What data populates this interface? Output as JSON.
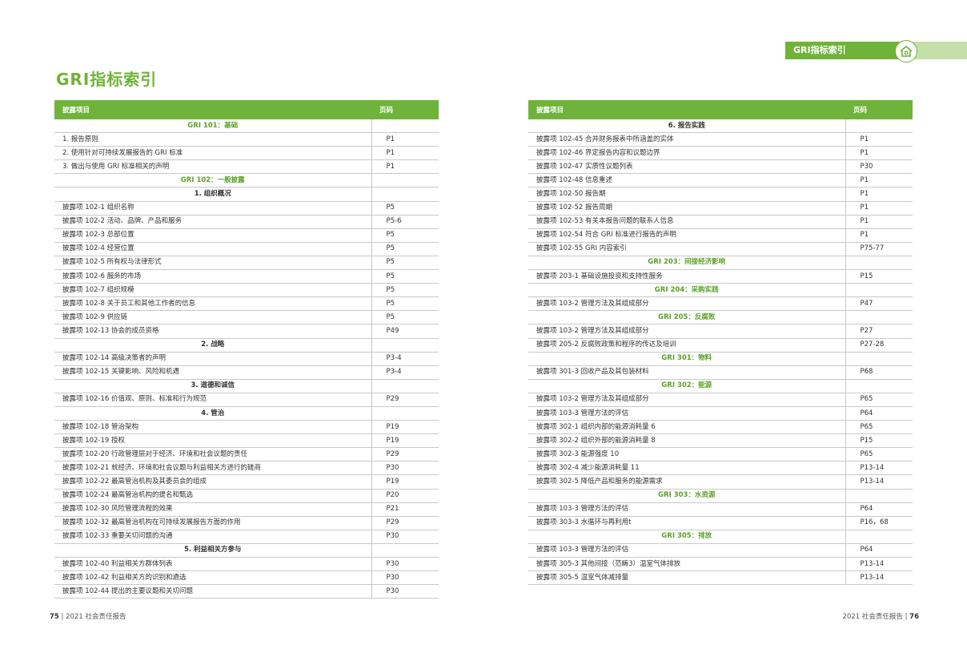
{
  "header": {
    "section_tab": "GRI指标索引",
    "home_icon": "home-icon"
  },
  "page_title": "GRI指标索引",
  "columns": {
    "item": "披露项目",
    "page": "页码"
  },
  "left_rows": [
    {
      "type": "section",
      "label": "GRI 101：基础"
    },
    {
      "item": "1. 报告原则",
      "page": "P1"
    },
    {
      "item": "2. 使用针对可持续发展报告的 GRI 标准",
      "page": "P1"
    },
    {
      "item": "3. 做出与使用 GRI 标准相关的声明",
      "page": "P1"
    },
    {
      "type": "section",
      "label": "GRI 102：一般披露"
    },
    {
      "type": "sub",
      "label": "1. 组织概况"
    },
    {
      "item": "披露项 102-1 组织名称",
      "page": "P5"
    },
    {
      "item": "披露项 102-2 活动、品牌、产品和服务",
      "page": "P5-6"
    },
    {
      "item": "披露项 102-3 总部位置",
      "page": "P5"
    },
    {
      "item": "披露项 102-4 经营位置",
      "page": "P5"
    },
    {
      "item": "披露项 102-5 所有权与法律形式",
      "page": "P5"
    },
    {
      "item": "披露项 102-6 服务的市场",
      "page": "P5"
    },
    {
      "item": "披露项 102-7 组织规模",
      "page": "P5"
    },
    {
      "item": "披露项 102-8 关于员工和其他工作者的信息",
      "page": "P5"
    },
    {
      "item": "披露项 102-9 供应链",
      "page": "P5"
    },
    {
      "item": "披露项 102-13 协会的成员资格",
      "page": "P49"
    },
    {
      "type": "sub",
      "label": "2. 战略"
    },
    {
      "item": "披露项 102-14 高级决策者的声明",
      "page": "P3-4"
    },
    {
      "item": "披露项 102-15 关键影响、风险和机遇",
      "page": "P3-4"
    },
    {
      "type": "sub",
      "label": "3. 道德和诚信"
    },
    {
      "item": "披露项 102-16 价值观、原则、标准和行为规范",
      "page": "P29"
    },
    {
      "type": "sub",
      "label": "4. 管治"
    },
    {
      "item": "披露项 102-18 管治架构",
      "page": "P19"
    },
    {
      "item": "披露项 102-19 授权",
      "page": "P19"
    },
    {
      "item": "披露项 102-20 行政管理层对于经济、环境和社会议题的责任",
      "page": "P29"
    },
    {
      "item": "披露项 102-21 就经济、环境和社会议题与利益相关方进行的磋商",
      "page": "P30"
    },
    {
      "item": "披露项 102-22 最高管治机构及其委员会的组成",
      "page": "P19"
    },
    {
      "item": "披露项 102-24 最高管治机构的提名和甄选",
      "page": "P20"
    },
    {
      "item": "披露项 102-30 风险管理流程的效果",
      "page": "P21"
    },
    {
      "item": "披露项 102-32 最高管治机构在可持续发展报告方面的作用",
      "page": "P29"
    },
    {
      "item": "披露项 102-33 重要关切问题的沟通",
      "page": "P30"
    },
    {
      "type": "sub",
      "label": "5. 利益相关方参与"
    },
    {
      "item": "披露项 102-40 利益相关方群体列表",
      "page": "P30"
    },
    {
      "item": "披露项 102-42 利益相关方的识别和遴选",
      "page": "P30"
    },
    {
      "item": "披露项 102-44 提出的主要议题和关切问题",
      "page": "P30"
    }
  ],
  "right_rows": [
    {
      "type": "sub",
      "label": "6. 报告实践"
    },
    {
      "item": "披露项 102-45 合并财务报表中所涵盖的实体",
      "page": "P1"
    },
    {
      "item": "披露项 102-46 界定报告内容和议题边界",
      "page": "P1"
    },
    {
      "item": "披露项 102-47 实质性议题列表",
      "page": "P30"
    },
    {
      "item": "披露项 102-48 信息重述",
      "page": "P1"
    },
    {
      "item": "披露项 102-50 报告期",
      "page": "P1"
    },
    {
      "item": "披露项 102-52 报告周期",
      "page": "P1"
    },
    {
      "item": "披露项 102-53 有关本报告问题的联系人信息",
      "page": "P1"
    },
    {
      "item": "披露项 102-54 符合 GRI 标准进行报告的声明",
      "page": "P1"
    },
    {
      "item": "披露项 102-55 GRI 内容索引",
      "page": "P75-77"
    },
    {
      "type": "section",
      "label": "GRI 203：间接经济影响"
    },
    {
      "item": "披露项 203-1 基础设施投资和支持性服务",
      "page": "P15"
    },
    {
      "type": "section",
      "label": "GRI 204：采购实践"
    },
    {
      "item": "披露项 103-2 管理方法及其组成部分",
      "page": "P47"
    },
    {
      "type": "section",
      "label": "GRI 205：反腐败"
    },
    {
      "item": "披露项 103-2 管理方法及其组成部分",
      "page": "P27"
    },
    {
      "item": "披露项 205-2 反腐败政策和程序的传达及培训",
      "page": "P27-28"
    },
    {
      "type": "section",
      "label": "GRI 301：物料"
    },
    {
      "item": "披露项 301-3 回收产品及其包装材料",
      "page": "P68"
    },
    {
      "type": "section",
      "label": "GRI 302：能源"
    },
    {
      "item": "披露项 103-2 管理方法及其组成部分",
      "page": "P65"
    },
    {
      "item": "披露项 103-3 管理方法的评估",
      "page": "P64"
    },
    {
      "item": "披露项 302-1 组织内部的能源消耗量 6",
      "page": "P65"
    },
    {
      "item": "披露项 302-2 组织外部的能源消耗量 8",
      "page": "P15"
    },
    {
      "item": "披露项 302-3 能源强度 10",
      "page": "P65"
    },
    {
      "item": "披露项 302-4 减少能源消耗量 11",
      "page": "P13-14"
    },
    {
      "item": "披露项 302-5 降低产品和服务的能源需求",
      "page": "P13-14"
    },
    {
      "type": "section",
      "label": "GRI 303：水资源"
    },
    {
      "item": "披露项 103-3 管理方法的评估",
      "page": "P64"
    },
    {
      "item": "披露项 303-3 水循环与再利用t",
      "page": "P16，68"
    },
    {
      "type": "section",
      "label": "GRI 305：排放"
    },
    {
      "item": "披露项 103-3 管理方法的评估",
      "page": "P64"
    },
    {
      "item": "披露项 305-3 其他间接（范畴3）温室气体排放",
      "page": "P13-14"
    },
    {
      "item": "披露项 305-5 温室气体减排量",
      "page": "P13-14"
    }
  ],
  "footer_left": {
    "page_num": "75",
    "report_name": "| 2021 社会责任报告"
  },
  "footer_right": {
    "report_name": "2021 社会责任报告 |",
    "page_num": "76"
  },
  "colors": {
    "accent": "#6fb33a",
    "accent_light": "#c4dfa7"
  }
}
